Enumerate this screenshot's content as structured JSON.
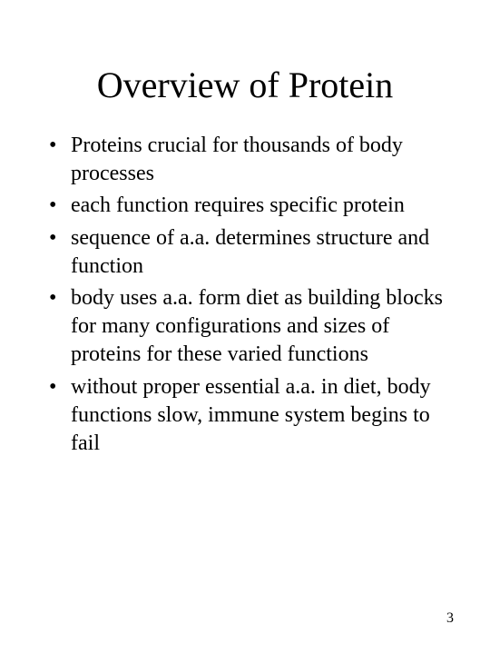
{
  "title": "Overview of Protein",
  "bullets": [
    "Proteins crucial for thousands of body processes",
    "each function requires specific protein",
    "sequence of a.a. determines structure and function",
    "body uses a.a. form diet as building blocks for many configurations and sizes of proteins for these varied functions",
    "without proper essential a.a. in diet, body functions slow, immune system begins to fail"
  ],
  "pageNumber": "3",
  "styling": {
    "background_color": "#ffffff",
    "text_color": "#000000",
    "title_fontsize": 40,
    "body_fontsize": 24,
    "page_number_fontsize": 16,
    "font_family": "Times New Roman"
  }
}
